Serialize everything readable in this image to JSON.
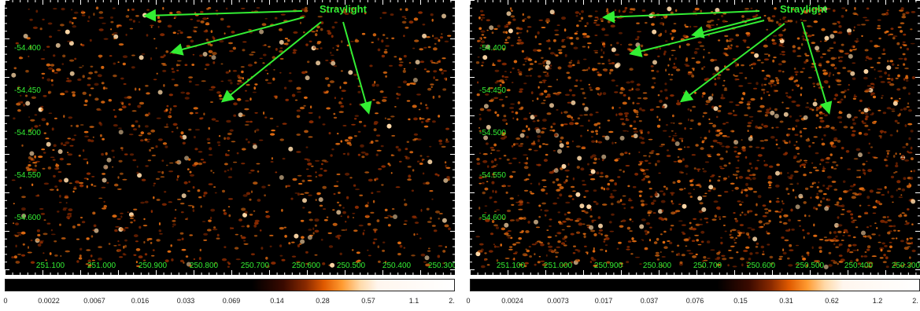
{
  "panels": [
    {
      "annotation": "Straylight",
      "dec_ticks": [
        "-54.400",
        "-54.450",
        "-54.500",
        "-54.550",
        "-54.600"
      ],
      "ra_ticks": [
        "251.100",
        "251.000",
        "250.900",
        "250.800",
        "250.700",
        "250.600",
        "250.500",
        "250.400",
        "250.300"
      ],
      "colorbar_ticks": [
        "0",
        "0.0022",
        "0.0067",
        "0.016",
        "0.033",
        "0.069",
        "0.14",
        "0.28",
        "0.57",
        "1.1",
        "2."
      ]
    },
    {
      "annotation": "Straylight",
      "dec_ticks": [
        "-54.400",
        "-54.450",
        "-54.500",
        "-54.550",
        "-54.600"
      ],
      "ra_ticks": [
        "251.100",
        "251.000",
        "250.900",
        "250.800",
        "250.700",
        "250.600",
        "250.500",
        "250.400",
        "250.300"
      ],
      "colorbar_ticks": [
        "0",
        "0.0024",
        "0.0073",
        "0.017",
        "0.037",
        "0.076",
        "0.15",
        "0.31",
        "0.62",
        "1.2",
        "2."
      ]
    }
  ],
  "colors": {
    "annotation": "#33ee33",
    "arrow": "#33ee33",
    "background": "#000000",
    "speckle_dark": "#8a2a00",
    "speckle_mid": "#e06a10",
    "speckle_bright": "#ffd9a8"
  }
}
